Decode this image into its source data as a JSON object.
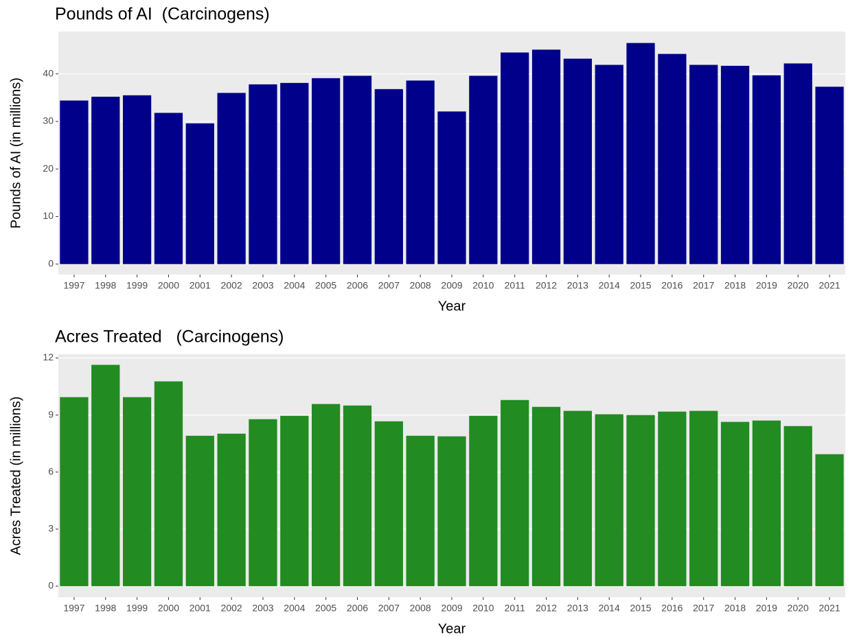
{
  "chart_data": [
    {
      "type": "bar",
      "title": "Pounds of AI  (Carcinogens)",
      "x_label": "Year",
      "y_label": "Pounds of AI (in millions)",
      "categories": [
        "1997",
        "1998",
        "1999",
        "2000",
        "2001",
        "2002",
        "2003",
        "2004",
        "2005",
        "2006",
        "2007",
        "2008",
        "2009",
        "2010",
        "2011",
        "2012",
        "2013",
        "2014",
        "2015",
        "2016",
        "2017",
        "2018",
        "2019",
        "2020",
        "2021"
      ],
      "values": [
        34.4,
        35.2,
        35.5,
        31.8,
        29.6,
        36.0,
        37.8,
        38.1,
        39.1,
        39.6,
        36.8,
        38.6,
        32.1,
        39.6,
        44.5,
        45.1,
        43.2,
        41.9,
        46.5,
        44.2,
        41.9,
        41.7,
        39.7,
        42.2,
        37.3
      ],
      "color": "#00008b",
      "ylim": [
        -2.2,
        48.9
      ],
      "yticks": [
        0,
        10,
        20,
        30,
        40
      ],
      "grid": true
    },
    {
      "type": "bar",
      "title": "Acres Treated   (Carcinogens)",
      "x_label": "Year",
      "y_label": "Acres Treated (in millions)",
      "categories": [
        "1997",
        "1998",
        "1999",
        "2000",
        "2001",
        "2002",
        "2003",
        "2004",
        "2005",
        "2006",
        "2007",
        "2008",
        "2009",
        "2010",
        "2011",
        "2012",
        "2013",
        "2014",
        "2015",
        "2016",
        "2017",
        "2018",
        "2019",
        "2020",
        "2021"
      ],
      "values": [
        9.94,
        11.64,
        9.94,
        10.77,
        7.91,
        8.02,
        8.78,
        8.96,
        9.58,
        9.5,
        8.67,
        7.91,
        7.88,
        8.96,
        9.79,
        9.43,
        9.22,
        9.04,
        9.0,
        9.18,
        9.22,
        8.64,
        8.71,
        8.42,
        6.94
      ],
      "color": "#228b22",
      "ylim": [
        -0.58,
        12.2
      ],
      "yticks": [
        0,
        3,
        6,
        9,
        12
      ],
      "grid": true
    }
  ]
}
